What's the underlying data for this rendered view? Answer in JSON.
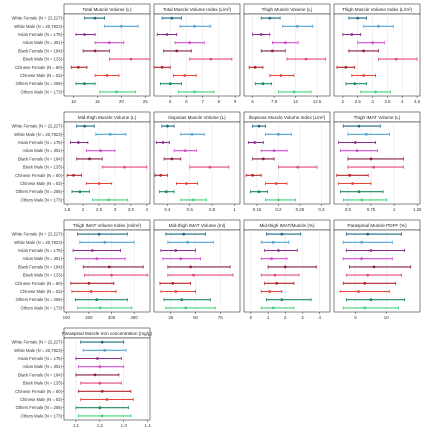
{
  "groups": [
    "White Female (N = 22,227)",
    "White Male (N = 20,7823)",
    "Asian Female (N = 175)",
    "Asian Male (N = 301)",
    "Black Female (N = 184)",
    "Black Male (N = 133)",
    "Chinese Female (N = 80)",
    "Chinese Male (N = 53)",
    "Others Female (N = 266)",
    "Others Male (N = 173)"
  ],
  "colors": [
    "#1d6a82",
    "#4fa3d6",
    "#8e2a92",
    "#d04fd6",
    "#8a1d4b",
    "#e0487f",
    "#b3242a",
    "#e8433a",
    "#1f8a5a",
    "#45d17a"
  ],
  "chart_data": [
    {
      "type": "forest",
      "title": "Total Muscle Volume (L)",
      "ticks": [
        10,
        15,
        20,
        25
      ],
      "xlim": [
        8,
        26
      ],
      "series": [
        {
          "values": [
            12.3,
            14.5,
            16.5
          ]
        },
        {
          "values": [
            16.5,
            20.0,
            23.5
          ]
        },
        {
          "values": [
            10.5,
            12.3,
            14.5
          ]
        },
        {
          "values": [
            14.5,
            17.5,
            20.5
          ]
        },
        {
          "values": [
            12.0,
            14.5,
            17.5
          ]
        },
        {
          "values": [
            17.5,
            22.0,
            26.0
          ]
        },
        {
          "values": [
            9.5,
            11.0,
            12.8
          ]
        },
        {
          "values": [
            14.5,
            17.0,
            19.5
          ]
        },
        {
          "values": [
            10.5,
            12.3,
            14.5
          ]
        },
        {
          "values": [
            15.5,
            19.0,
            23.0
          ]
        }
      ]
    },
    {
      "type": "forest",
      "title": "Total Muscle Volume Index (L/m²)",
      "ticks": [
        5,
        6,
        7,
        8,
        9
      ],
      "xlim": [
        4,
        9.3
      ],
      "series": [
        {
          "values": [
            4.5,
            5.1,
            5.7
          ]
        },
        {
          "values": [
            5.6,
            6.5,
            7.5
          ]
        },
        {
          "values": [
            4.2,
            4.8,
            5.4
          ]
        },
        {
          "values": [
            5.3,
            6.2,
            7.1
          ]
        },
        {
          "values": [
            4.6,
            5.4,
            6.3
          ]
        },
        {
          "values": [
            6.2,
            7.5,
            8.8
          ]
        },
        {
          "values": [
            4.0,
            4.5,
            5.0
          ]
        },
        {
          "values": [
            5.2,
            5.9,
            6.6
          ]
        },
        {
          "values": [
            4.4,
            5.0,
            5.7
          ]
        },
        {
          "values": [
            5.5,
            6.5,
            7.7
          ]
        }
      ]
    },
    {
      "type": "forest",
      "title": "Thigh Muscle Volume (L)",
      "ticks": [
        5.0,
        7.5,
        10.0,
        12.5
      ],
      "xlim": [
        4,
        14
      ],
      "series": [
        {
          "values": [
            6.0,
            7.0,
            8.2
          ]
        },
        {
          "values": [
            8.5,
            10.2,
            12.0
          ]
        },
        {
          "values": [
            5.0,
            6.0,
            7.0
          ]
        },
        {
          "values": [
            7.3,
            8.8,
            10.3
          ]
        },
        {
          "values": [
            6.0,
            7.3,
            8.8
          ]
        },
        {
          "values": [
            9.0,
            11.2,
            13.5
          ]
        },
        {
          "values": [
            4.6,
            5.3,
            6.2
          ]
        },
        {
          "values": [
            7.0,
            8.3,
            9.8
          ]
        },
        {
          "values": [
            5.3,
            6.2,
            7.2
          ]
        },
        {
          "values": [
            8.0,
            9.8,
            11.8
          ]
        }
      ]
    },
    {
      "type": "forest",
      "title": "Thigh Muscle Volume Index (L/m²)",
      "ticks": [
        2.0,
        2.5,
        3.0,
        3.5,
        4.0,
        4.5
      ],
      "xlim": [
        1.7,
        4.6
      ],
      "series": [
        {
          "values": [
            2.2,
            2.5,
            2.8
          ]
        },
        {
          "values": [
            2.7,
            3.2,
            3.7
          ]
        },
        {
          "values": [
            2.0,
            2.3,
            2.6
          ]
        },
        {
          "values": [
            2.5,
            3.0,
            3.4
          ]
        },
        {
          "values": [
            2.2,
            2.7,
            3.2
          ]
        },
        {
          "values": [
            3.2,
            3.8,
            4.5
          ]
        },
        {
          "values": [
            1.8,
            2.1,
            2.4
          ]
        },
        {
          "values": [
            2.3,
            2.7,
            3.1
          ]
        },
        {
          "values": [
            2.1,
            2.4,
            2.8
          ]
        },
        {
          "values": [
            2.6,
            3.1,
            3.6
          ]
        }
      ]
    },
    {
      "type": "forest",
      "title": "Mid-thigh Muscle Volume (L)",
      "ticks": [
        1.5,
        2.0,
        2.5,
        3.0,
        3.5,
        4.0
      ],
      "xlim": [
        1.4,
        4.1
      ],
      "series": [
        {
          "values": [
            1.8,
            2.05,
            2.35
          ]
        },
        {
          "values": [
            2.4,
            2.85,
            3.35
          ]
        },
        {
          "values": [
            1.6,
            1.85,
            2.15
          ]
        },
        {
          "values": [
            2.1,
            2.55,
            3.0
          ]
        },
        {
          "values": [
            1.8,
            2.2,
            2.6
          ]
        },
        {
          "values": [
            2.6,
            3.3,
            4.0
          ]
        },
        {
          "values": [
            1.5,
            1.7,
            1.95
          ]
        },
        {
          "values": [
            2.1,
            2.5,
            2.9
          ]
        },
        {
          "values": [
            1.65,
            1.9,
            2.2
          ]
        },
        {
          "values": [
            2.3,
            2.8,
            3.4
          ]
        }
      ]
    },
    {
      "type": "forest",
      "title": "Iliopsoas Muscle Volume (L)",
      "ticks": [
        0.4,
        0.6,
        0.8,
        1.0
      ],
      "xlim": [
        0.28,
        1.05
      ],
      "series": [
        {
          "values": [
            0.35,
            0.4,
            0.46
          ]
        },
        {
          "values": [
            0.52,
            0.62,
            0.73
          ]
        },
        {
          "values": [
            0.3,
            0.36,
            0.42
          ]
        },
        {
          "values": [
            0.46,
            0.56,
            0.66
          ]
        },
        {
          "values": [
            0.37,
            0.44,
            0.52
          ]
        },
        {
          "values": [
            0.6,
            0.78,
            0.95
          ]
        },
        {
          "values": [
            0.29,
            0.34,
            0.4
          ]
        },
        {
          "values": [
            0.48,
            0.57,
            0.67
          ]
        },
        {
          "values": [
            0.33,
            0.39,
            0.46
          ]
        },
        {
          "values": [
            0.52,
            0.63,
            0.75
          ]
        }
      ]
    },
    {
      "type": "forest",
      "title": "Iliopsoas Muscle Volume Index (L/m²)",
      "ticks": [
        0.15,
        0.2,
        0.25,
        0.3
      ],
      "xlim": [
        0.12,
        0.32
      ],
      "series": [
        {
          "values": [
            0.14,
            0.155,
            0.17
          ]
        },
        {
          "values": [
            0.17,
            0.2,
            0.23
          ]
        },
        {
          "values": [
            0.13,
            0.145,
            0.165
          ]
        },
        {
          "values": [
            0.16,
            0.19,
            0.22
          ]
        },
        {
          "values": [
            0.14,
            0.165,
            0.19
          ]
        },
        {
          "values": [
            0.2,
            0.245,
            0.29
          ]
        },
        {
          "values": [
            0.125,
            0.14,
            0.16
          ]
        },
        {
          "values": [
            0.17,
            0.195,
            0.22
          ]
        },
        {
          "values": [
            0.135,
            0.155,
            0.175
          ]
        },
        {
          "values": [
            0.17,
            0.2,
            0.24
          ]
        }
      ]
    },
    {
      "type": "forest",
      "title": "Thigh IMAT Volume (L)",
      "ticks": [
        0.5,
        0.75,
        1.0,
        1.25
      ],
      "xlim": [
        0.35,
        1.28
      ],
      "series": [
        {
          "values": [
            0.45,
            0.62,
            0.85
          ]
        },
        {
          "values": [
            0.5,
            0.7,
            0.95
          ]
        },
        {
          "values": [
            0.4,
            0.58,
            0.8
          ]
        },
        {
          "values": [
            0.42,
            0.6,
            0.82
          ]
        },
        {
          "values": [
            0.5,
            0.75,
            1.1
          ]
        },
        {
          "values": [
            0.5,
            0.78,
            1.1
          ]
        },
        {
          "values": [
            0.38,
            0.52,
            0.72
          ]
        },
        {
          "values": [
            0.4,
            0.55,
            0.75
          ]
        },
        {
          "values": [
            0.42,
            0.62,
            0.88
          ]
        },
        {
          "values": [
            0.45,
            0.65,
            0.92
          ]
        }
      ]
    },
    {
      "type": "forest",
      "title": "Thigh IMAT Volume Index (ml/m²)",
      "ticks": [
        100,
        200,
        300,
        400
      ],
      "xlim": [
        90,
        470
      ],
      "series": [
        {
          "values": [
            150,
            245,
            370
          ]
        },
        {
          "values": [
            160,
            270,
            400
          ]
        },
        {
          "values": [
            130,
            215,
            340
          ]
        },
        {
          "values": [
            140,
            235,
            360
          ]
        },
        {
          "values": [
            175,
            290,
            440
          ]
        },
        {
          "values": [
            180,
            300,
            460
          ]
        },
        {
          "values": [
            120,
            200,
            310
          ]
        },
        {
          "values": [
            125,
            210,
            320
          ]
        },
        {
          "values": [
            140,
            235,
            370
          ]
        },
        {
          "values": [
            150,
            250,
            390
          ]
        }
      ]
    },
    {
      "type": "forest",
      "title": "Mid-thigh IMAT Volume (ml)",
      "ticks": [
        25,
        50,
        75
      ],
      "xlim": [
        8,
        95
      ],
      "series": [
        {
          "values": [
            20,
            38,
            60
          ]
        },
        {
          "values": [
            22,
            42,
            68
          ]
        },
        {
          "values": [
            15,
            30,
            50
          ]
        },
        {
          "values": [
            17,
            35,
            55
          ]
        },
        {
          "values": [
            22,
            45,
            85
          ]
        },
        {
          "values": [
            22,
            48,
            88
          ]
        },
        {
          "values": [
            14,
            27,
            45
          ]
        },
        {
          "values": [
            15,
            30,
            50
          ]
        },
        {
          "values": [
            18,
            36,
            65
          ]
        },
        {
          "values": [
            20,
            40,
            70
          ]
        }
      ]
    },
    {
      "type": "forest",
      "title": "Mid-thigh IMAT/Muscle (%)",
      "ticks": [
        0,
        1,
        2,
        3,
        4
      ],
      "xlim": [
        -0.4,
        4.6
      ],
      "series": [
        {
          "values": [
            0.9,
            1.8,
            2.9
          ]
        },
        {
          "values": [
            0.6,
            1.3,
            2.2
          ]
        },
        {
          "values": [
            0.8,
            1.6,
            2.7
          ]
        },
        {
          "values": [
            0.6,
            1.2,
            2.1
          ]
        },
        {
          "values": [
            1.0,
            2.0,
            3.8
          ]
        },
        {
          "values": [
            0.6,
            1.4,
            2.8
          ]
        },
        {
          "values": [
            0.8,
            1.5,
            2.5
          ]
        },
        {
          "values": [
            0.6,
            1.1,
            1.8
          ]
        },
        {
          "values": [
            0.9,
            1.8,
            3.5
          ]
        },
        {
          "values": [
            0.6,
            1.3,
            2.5
          ]
        }
      ]
    },
    {
      "type": "forest",
      "title": "Paraspinal Muscle PDFF (%)",
      "ticks": [
        5,
        10
      ],
      "xlim": [
        1.5,
        15.5
      ],
      "series": [
        {
          "values": [
            3.5,
            7.0,
            12.5
          ]
        },
        {
          "values": [
            3.0,
            6.0,
            11.0
          ]
        },
        {
          "values": [
            3.5,
            7.5,
            13.0
          ]
        },
        {
          "values": [
            3.0,
            6.0,
            11.0
          ]
        },
        {
          "values": [
            4.0,
            8.0,
            14.0
          ]
        },
        {
          "values": [
            3.5,
            7.0,
            12.5
          ]
        },
        {
          "values": [
            3.0,
            6.5,
            11.5
          ]
        },
        {
          "values": [
            2.5,
            5.5,
            10.5
          ]
        },
        {
          "values": [
            3.5,
            7.5,
            13.0
          ]
        },
        {
          "values": [
            3.0,
            6.5,
            12.0
          ]
        }
      ]
    },
    {
      "type": "forest",
      "title": "Paraspinal Muscle Iron concentration (mg/g)",
      "ticks": [
        1.1,
        1.2,
        1.3,
        1.4
      ],
      "xlim": [
        1.05,
        1.41
      ],
      "series": [
        {
          "values": [
            1.12,
            1.21,
            1.3
          ]
        },
        {
          "values": [
            1.13,
            1.22,
            1.31
          ]
        },
        {
          "values": [
            1.1,
            1.19,
            1.29
          ]
        },
        {
          "values": [
            1.11,
            1.2,
            1.3
          ]
        },
        {
          "values": [
            1.1,
            1.18,
            1.28
          ]
        },
        {
          "values": [
            1.12,
            1.2,
            1.29
          ]
        },
        {
          "values": [
            1.11,
            1.21,
            1.33
          ]
        },
        {
          "values": [
            1.12,
            1.23,
            1.34
          ]
        },
        {
          "values": [
            1.1,
            1.2,
            1.32
          ]
        },
        {
          "values": [
            1.11,
            1.21,
            1.33
          ]
        }
      ]
    }
  ]
}
